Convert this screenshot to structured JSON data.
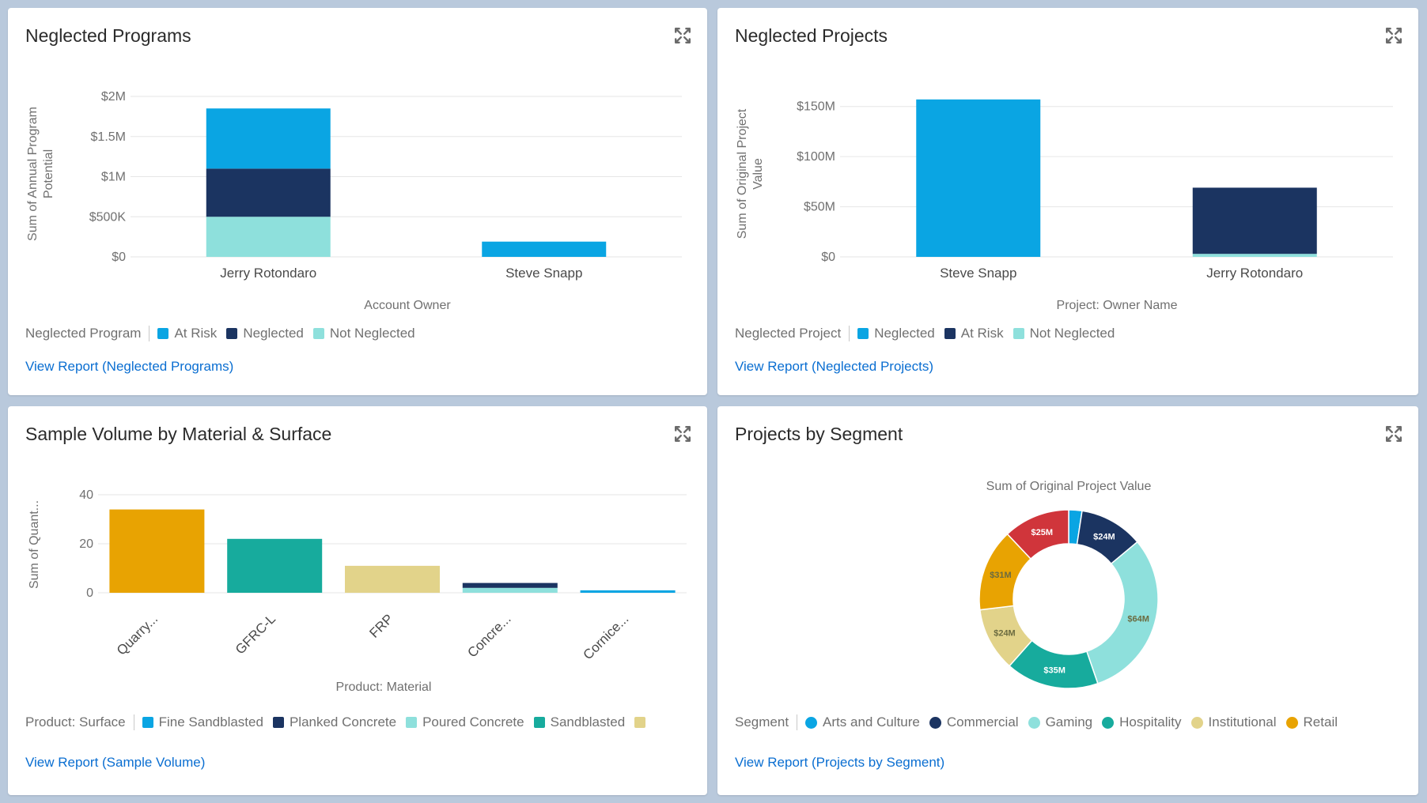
{
  "colors": {
    "blue": "#0aa5e3",
    "navy": "#1b3461",
    "light_teal": "#8ee0dc",
    "teal": "#17ab9d",
    "gold": "#e8a302",
    "khaki": "#e2d38a",
    "red": "#d0353b",
    "link": "#0a6ed1"
  },
  "cards": [
    {
      "title": "Neglected Programs",
      "legend_title": "Neglected Program",
      "legend": [
        {
          "label": "At Risk",
          "color": "#0aa5e3"
        },
        {
          "label": "Neglected",
          "color": "#1b3461"
        },
        {
          "label": "Not Neglected",
          "color": "#8ee0dc"
        }
      ],
      "link": "View Report (Neglected Programs)",
      "expand_icon": "expand-icon"
    },
    {
      "title": "Neglected Projects",
      "legend_title": "Neglected Project",
      "legend": [
        {
          "label": "Neglected",
          "color": "#0aa5e3"
        },
        {
          "label": "At Risk",
          "color": "#1b3461"
        },
        {
          "label": "Not Neglected",
          "color": "#8ee0dc"
        }
      ],
      "link": "View Report (Neglected Projects)",
      "expand_icon": "expand-icon"
    },
    {
      "title": "Sample Volume by Material & Surface",
      "legend_title": "Product: Surface",
      "legend": [
        {
          "label": "Fine Sandblasted",
          "color": "#0aa5e3"
        },
        {
          "label": "Planked Concrete",
          "color": "#1b3461"
        },
        {
          "label": "Poured Concrete",
          "color": "#8ee0dc"
        },
        {
          "label": "Sandblasted",
          "color": "#17ab9d"
        },
        {
          "label": "",
          "color": "#e2d38a"
        }
      ],
      "link": "View Report (Sample Volume)",
      "expand_icon": "expand-icon"
    },
    {
      "title": "Projects by Segment",
      "legend_title": "Segment",
      "legend": [
        {
          "label": "Arts and Culture",
          "color": "#0aa5e3"
        },
        {
          "label": "Commercial",
          "color": "#1b3461"
        },
        {
          "label": "Gaming",
          "color": "#8ee0dc"
        },
        {
          "label": "Hospitality",
          "color": "#17ab9d"
        },
        {
          "label": "Institutional",
          "color": "#e2d38a"
        },
        {
          "label": "Retail",
          "color": "#e8a302"
        }
      ],
      "link": "View Report (Projects by Segment)",
      "expand_icon": "expand-icon"
    }
  ],
  "chart_data": [
    {
      "type": "bar",
      "stacked": true,
      "categories": [
        "Jerry Rotondaro",
        "Steve Snapp"
      ],
      "series": [
        {
          "name": "Not Neglected",
          "values": [
            500000,
            0
          ]
        },
        {
          "name": "Neglected",
          "values": [
            600000,
            0
          ]
        },
        {
          "name": "At Risk",
          "values": [
            750000,
            190000
          ]
        }
      ],
      "xlabel": "Account Owner",
      "ylabel": "Sum of Annual Program Potential",
      "yticks": [
        0,
        500000,
        1000000,
        1500000,
        2000000
      ],
      "ytick_labels": [
        "$0",
        "$500K",
        "$1M",
        "$1.5M",
        "$2M"
      ],
      "ylim": [
        0,
        2000000
      ],
      "grid": true
    },
    {
      "type": "bar",
      "stacked": true,
      "categories": [
        "Steve Snapp",
        "Jerry Rotondaro"
      ],
      "series": [
        {
          "name": "Not Neglected",
          "values": [
            0,
            3000000
          ]
        },
        {
          "name": "At Risk",
          "values": [
            0,
            66000000
          ]
        },
        {
          "name": "Neglected",
          "values": [
            157000000,
            0
          ]
        }
      ],
      "xlabel": "Project: Owner Name",
      "ylabel": "Sum of Original Project Value",
      "yticks": [
        0,
        50000000,
        100000000,
        150000000
      ],
      "ytick_labels": [
        "$0",
        "$50M",
        "$100M",
        "$150M"
      ],
      "ylim": [
        0,
        160000000
      ],
      "grid": true
    },
    {
      "type": "bar",
      "stacked": true,
      "categories": [
        "Quarry...",
        "GFRC-L",
        "FRP",
        "Concre...",
        "Cornice..."
      ],
      "series": [
        {
          "name": "Fine Sandblasted",
          "values": [
            0,
            0,
            0,
            0,
            1
          ]
        },
        {
          "name": "Poured Concrete",
          "values": [
            0,
            0,
            0,
            2,
            0
          ]
        },
        {
          "name": "Planked Concrete",
          "values": [
            0,
            0,
            0,
            2,
            0
          ]
        },
        {
          "name": "Sandblasted",
          "values": [
            0,
            22,
            0,
            0,
            0
          ]
        },
        {
          "name": "",
          "color_key": "khaki",
          "values": [
            0,
            0,
            11,
            0,
            0
          ]
        },
        {
          "name": "",
          "color_key": "gold",
          "values": [
            34,
            0,
            0,
            0,
            0
          ]
        }
      ],
      "xlabel": "Product: Material",
      "ylabel": "Sum of Quant...",
      "yticks": [
        0,
        20,
        40
      ],
      "ytick_labels": [
        "0",
        "20",
        "40"
      ],
      "ylim": [
        0,
        40
      ],
      "grid": true
    },
    {
      "type": "pie",
      "donut": true,
      "title": "Sum of Original Project Value",
      "slices": [
        {
          "name": "Arts and Culture",
          "value": 5,
          "label": ""
        },
        {
          "name": "Commercial",
          "value": 24,
          "label": "$24M"
        },
        {
          "name": "Gaming",
          "value": 64,
          "label": "$64M"
        },
        {
          "name": "Hospitality",
          "value": 35,
          "label": "$35M"
        },
        {
          "name": "Institutional",
          "value": 24,
          "label": "$24M"
        },
        {
          "name": "Retail",
          "value": 31,
          "label": "$31M"
        },
        {
          "name": "",
          "color_key": "red",
          "value": 25,
          "label": "$25M"
        }
      ]
    }
  ]
}
